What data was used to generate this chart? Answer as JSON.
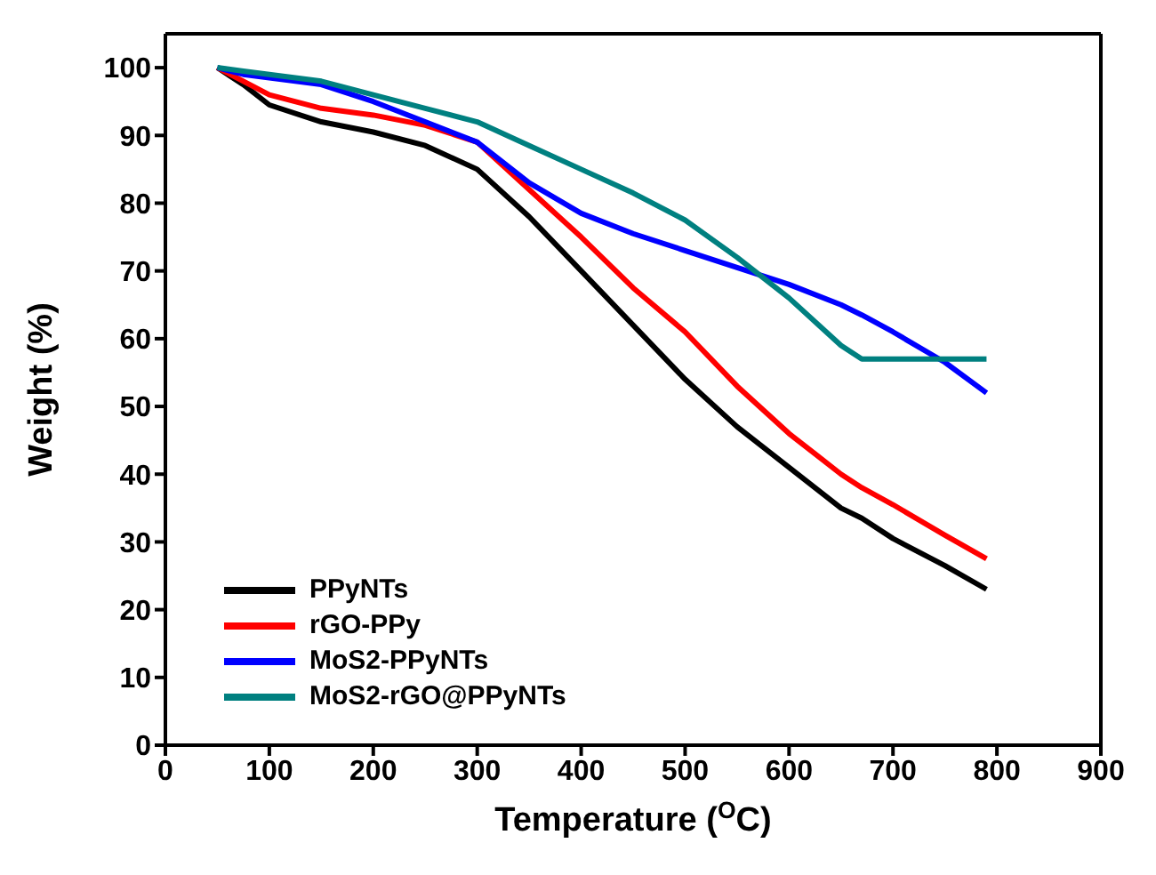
{
  "chart_data": {
    "type": "line",
    "xlabel": "Temperature ($^{O}$C)",
    "ylabel": "Weight (%)",
    "x": [
      50,
      75,
      100,
      150,
      200,
      250,
      300,
      350,
      400,
      450,
      500,
      550,
      600,
      650,
      670,
      700,
      750,
      790
    ],
    "series": [
      {
        "name": "PPyNTs",
        "color": "#000000",
        "values": [
          100,
          97.5,
          94.5,
          92,
          90.5,
          88.5,
          85,
          78,
          70,
          62,
          54,
          47,
          41,
          35,
          33.5,
          30.5,
          26.5,
          23
        ]
      },
      {
        "name": "rGO-PPy",
        "color": "#ff0000",
        "values": [
          100,
          98,
          96,
          94,
          93,
          91.5,
          89,
          82,
          75,
          67.5,
          61,
          53,
          46,
          40,
          38,
          35.5,
          31,
          27.5
        ]
      },
      {
        "name": "MoS2-PPyNTs",
        "color": "#0000ff",
        "values": [
          100,
          99,
          98.5,
          97.5,
          95,
          92,
          89,
          83,
          78.5,
          75.5,
          73,
          70.5,
          68,
          65,
          63.5,
          61,
          56.5,
          52
        ]
      },
      {
        "name": "MoS2-rGO@PPyNTs",
        "color": "#008080",
        "values": [
          100,
          99.5,
          99,
          98,
          96,
          94,
          92,
          88.5,
          85,
          81.5,
          77.5,
          72,
          66,
          59,
          57,
          57,
          57,
          57
        ]
      }
    ],
    "xlim": [
      0,
      900
    ],
    "xticks": [
      0,
      100,
      200,
      300,
      400,
      500,
      600,
      700,
      800,
      900
    ],
    "ylim": [
      0,
      105
    ],
    "yticks": [
      0,
      10,
      20,
      30,
      40,
      50,
      60,
      70,
      80,
      90,
      100
    ],
    "grid": false,
    "legend": "bottom left",
    "marker": "none",
    "line_style": "solid"
  }
}
